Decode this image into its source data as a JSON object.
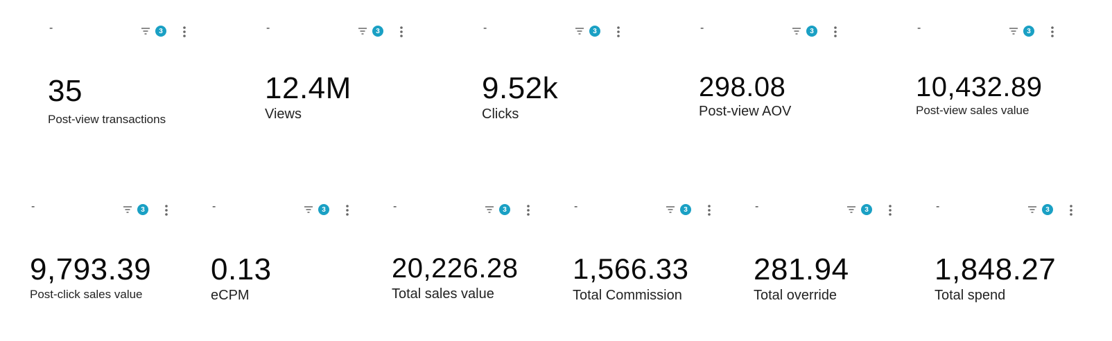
{
  "row1": [
    {
      "dash": "-",
      "badge": "3",
      "value": "35",
      "label": "Post-view transactions"
    },
    {
      "dash": "-",
      "badge": "3",
      "value": "12.4M",
      "label": "Views"
    },
    {
      "dash": "-",
      "badge": "3",
      "value": "9.52k",
      "label": "Clicks"
    },
    {
      "dash": "-",
      "badge": "3",
      "value": "298.08",
      "label": "Post-view AOV"
    },
    {
      "dash": "-",
      "badge": "3",
      "value": "10,432.89",
      "label": "Post-view sales value"
    }
  ],
  "row2": [
    {
      "dash": "-",
      "badge": "3",
      "value": "9,793.39",
      "label": "Post-click sales value"
    },
    {
      "dash": "-",
      "badge": "3",
      "value": "0.13",
      "label": "eCPM"
    },
    {
      "dash": "-",
      "badge": "3",
      "value": "20,226.28",
      "label": "Total sales value"
    },
    {
      "dash": "-",
      "badge": "3",
      "value": "1,566.33",
      "label": "Total Commission"
    },
    {
      "dash": "-",
      "badge": "3",
      "value": "281.94",
      "label": "Total override"
    },
    {
      "dash": "-",
      "badge": "3",
      "value": "1,848.27",
      "label": "Total spend"
    }
  ],
  "colors": {
    "badge": "#1aa0c4",
    "icon": "#666666"
  },
  "icons": {
    "filter": "filter-icon",
    "menu": "more-vert-icon"
  }
}
